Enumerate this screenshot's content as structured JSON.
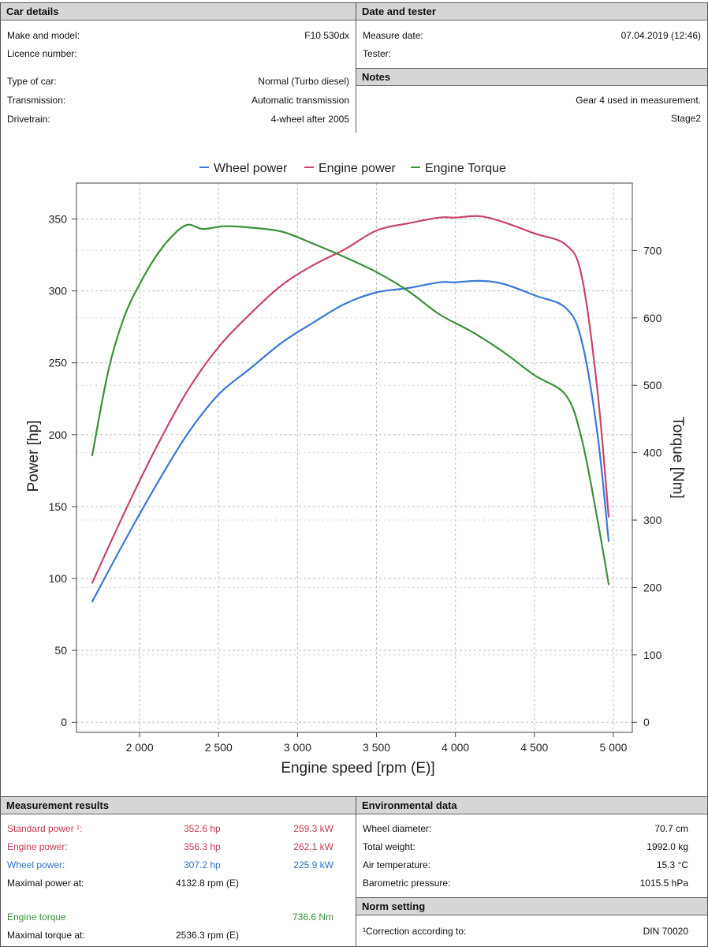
{
  "car_details": {
    "header": "Car details",
    "make_model": {
      "label": "Make and model:",
      "value": "F10 530dx"
    },
    "licence": {
      "label": "Licence number:",
      "value": ""
    },
    "type": {
      "label": "Type of car:",
      "value": "Normal (Turbo diesel)"
    },
    "transmission": {
      "label": "Transmission:",
      "value": "Automatic transmission"
    },
    "drivetrain": {
      "label": "Drivetrain:",
      "value": "4-wheel after 2005"
    }
  },
  "date_tester": {
    "header": "Date and tester",
    "measure_date": {
      "label": "Measure date:",
      "value": "07.04.2019 (12:46)"
    },
    "tester": {
      "label": "Tester:",
      "value": ""
    }
  },
  "notes": {
    "header": "Notes",
    "line1": "Gear 4 used in measurement.",
    "line2": "Stage2"
  },
  "chart_data": {
    "type": "line",
    "xlabel": "Engine speed [rpm (E)]",
    "ylabel": "Power [hp]",
    "y2label": "Torque [Nm]",
    "xlim": [
      1600,
      5120
    ],
    "ylim": [
      -7,
      375
    ],
    "y2lim": [
      -14.93,
      800
    ],
    "x_ticks": [
      2000,
      2500,
      3000,
      3500,
      4000,
      4500,
      5000
    ],
    "x_tick_labels": [
      "2 000",
      "2 500",
      "3 000",
      "3 500",
      "4 000",
      "4 500",
      "5 000"
    ],
    "y_ticks": [
      0,
      50,
      100,
      150,
      200,
      250,
      300,
      350
    ],
    "y_tick_labels": [
      "0",
      "50",
      "100",
      "150",
      "200",
      "250",
      "300",
      "350"
    ],
    "y2_ticks": [
      0,
      100,
      200,
      300,
      400,
      500,
      600,
      700
    ],
    "y2_tick_labels": [
      "0",
      "100",
      "200",
      "300",
      "400",
      "500",
      "600",
      "700"
    ],
    "grid": true,
    "legend_position": "top",
    "series": [
      {
        "name": "Wheel power",
        "axis": "left",
        "color": "#3b78d8",
        "x": [
          1700,
          1900,
          2100,
          2300,
          2500,
          2700,
          2900,
          3100,
          3300,
          3500,
          3700,
          3900,
          4000,
          4150,
          4300,
          4500,
          4700,
          4800,
          4900,
          4970
        ],
        "y": [
          84,
          125,
          164,
          200,
          228,
          246,
          264,
          278,
          291,
          299,
          302,
          306,
          306,
          307,
          305,
          297,
          288,
          265,
          200,
          126
        ]
      },
      {
        "name": "Engine power",
        "axis": "left",
        "color": "#c8456a",
        "x": [
          1700,
          1900,
          2100,
          2300,
          2500,
          2700,
          2900,
          3100,
          3300,
          3500,
          3700,
          3900,
          4000,
          4150,
          4300,
          4500,
          4700,
          4800,
          4900,
          4970
        ],
        "y": [
          97,
          145,
          190,
          230,
          261,
          284,
          304,
          318,
          329,
          342,
          347,
          351,
          351,
          352,
          348,
          340,
          332,
          310,
          230,
          143
        ]
      },
      {
        "name": "Engine Torque",
        "axis": "right",
        "color": "#3c8f3c",
        "x": [
          1700,
          1800,
          1900,
          2000,
          2100,
          2200,
          2300,
          2400,
          2536,
          2700,
          2900,
          3100,
          3300,
          3500,
          3700,
          3900,
          4100,
          4300,
          4500,
          4700,
          4800,
          4900,
          4970
        ],
        "y": [
          396,
          520,
          600,
          650,
          690,
          720,
          738,
          732,
          736,
          734,
          728,
          710,
          690,
          668,
          640,
          605,
          580,
          550,
          515,
          485,
          420,
          300,
          205
        ]
      }
    ]
  },
  "measurement": {
    "header": "Measurement results",
    "standard": {
      "label": "Standard power ¹:",
      "hp": "352.6 hp",
      "kw": "259.3 kW"
    },
    "engine": {
      "label": "Engine power:",
      "hp": "356.3 hp",
      "kw": "262.1 kW"
    },
    "wheel": {
      "label": "Wheel power:",
      "hp": "307.2 hp",
      "kw": "225.9 kW"
    },
    "max_power": {
      "label": "Maximal power at:",
      "value": "4132.8 rpm (E)"
    },
    "torque": {
      "label": "Engine torque",
      "value": "736.6 Nm"
    },
    "max_torque": {
      "label": "Maximal torque at:",
      "value": "2536.3 rpm (E)"
    }
  },
  "environment": {
    "header": "Environmental data",
    "wheel_diameter": {
      "label": "Wheel diameter:",
      "value": "70.7 cm"
    },
    "total_weight": {
      "label": "Total weight:",
      "value": "1992.0 kg"
    },
    "air_temp": {
      "label": "Air temperature:",
      "value": "15.3 °C"
    },
    "baro": {
      "label": "Barometric pressure:",
      "value": "1015.5 hPa"
    }
  },
  "norm": {
    "header": "Norm setting",
    "correction": {
      "label": "¹Correction according to:",
      "value": "DIN 70020"
    }
  }
}
